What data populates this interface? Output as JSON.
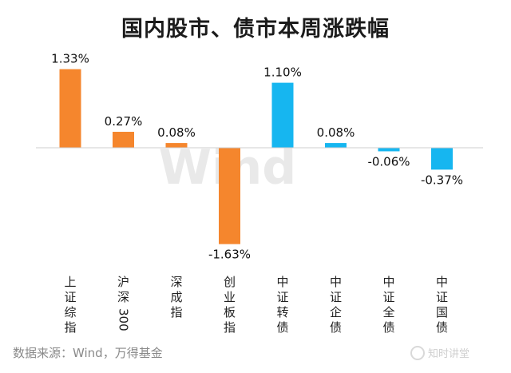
{
  "title": "国内股市、债市本周涨跌幅",
  "source": "数据来源：Wind，万得基金",
  "watermark": "Wind",
  "brand": {
    "text": "知时讲堂",
    "icon": "circle-logo-icon"
  },
  "colors": {
    "equity": "#F5862D",
    "bond": "#16B6F0",
    "axis": "#cfcfcf"
  },
  "chart_data": {
    "type": "bar",
    "title": "国内股市、债市本周涨跌幅",
    "xlabel": "",
    "ylabel": "",
    "ylim": [
      -2.0,
      1.5
    ],
    "unit": "%",
    "categories": [
      "上证综指",
      "沪深300",
      "深成指",
      "创业板指",
      "中证转债",
      "中证企债",
      "中证全债",
      "中证国债"
    ],
    "values": [
      1.33,
      0.27,
      0.08,
      -1.63,
      1.1,
      0.08,
      -0.06,
      -0.37
    ],
    "labels": [
      "1.33%",
      "0.27%",
      "0.08%",
      "-1.63%",
      "1.10%",
      "0.08%",
      "-0.06%",
      "-0.37%"
    ],
    "groups": [
      "equity",
      "equity",
      "equity",
      "equity",
      "bond",
      "bond",
      "bond",
      "bond"
    ],
    "grid": false,
    "legend": "none"
  }
}
